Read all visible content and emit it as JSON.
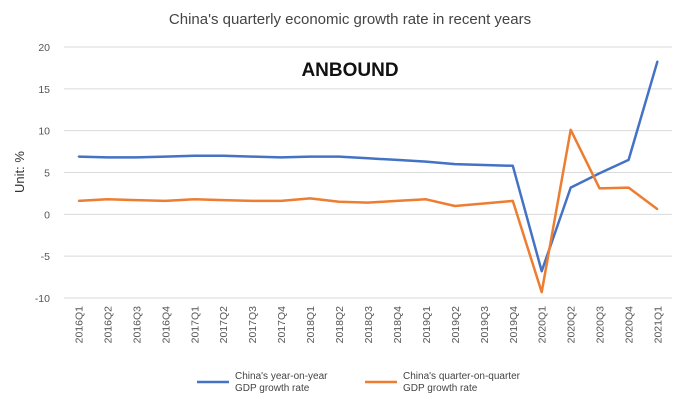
{
  "chart_data": {
    "type": "line",
    "title": "China's quarterly economic growth rate in recent years",
    "ylabel": "Unit: %",
    "xlabel": "",
    "watermark": "ANBOUND",
    "ylim": [
      -10,
      20
    ],
    "yticks": [
      20,
      15,
      10,
      5,
      0,
      -5,
      -10
    ],
    "categories": [
      "2016Q1",
      "2016Q2",
      "2016Q3",
      "2016Q4",
      "2017Q1",
      "2017Q2",
      "2017Q3",
      "2017Q4",
      "2018Q1",
      "2018Q2",
      "2018Q3",
      "2018Q4",
      "2019Q1",
      "2019Q2",
      "2019Q3",
      "2019Q4",
      "2020Q1",
      "2020Q2",
      "2020Q3",
      "2020Q4",
      "2021Q1"
    ],
    "series": [
      {
        "name": "China's year-on-year GDP growth rate",
        "legend_lines": [
          "China's year-on-year",
          "GDP growth rate"
        ],
        "color": "#4472C4",
        "values": [
          6.9,
          6.8,
          6.8,
          6.9,
          7.0,
          7.0,
          6.9,
          6.8,
          6.9,
          6.9,
          6.7,
          6.5,
          6.3,
          6.0,
          5.9,
          5.8,
          -6.8,
          3.2,
          4.9,
          6.5,
          18.3
        ]
      },
      {
        "name": "China's quarter-on-quarter GDP growth rate",
        "legend_lines": [
          "China's quarter-on-quarter",
          "GDP growth rate"
        ],
        "color": "#ED7D31",
        "values": [
          1.6,
          1.8,
          1.7,
          1.6,
          1.8,
          1.7,
          1.6,
          1.6,
          1.9,
          1.5,
          1.4,
          1.6,
          1.8,
          1.0,
          1.3,
          1.6,
          -9.3,
          10.1,
          3.1,
          3.2,
          0.6
        ]
      }
    ],
    "grid": true,
    "grid_color": "#d9d9d9",
    "legend_position": "bottom"
  }
}
